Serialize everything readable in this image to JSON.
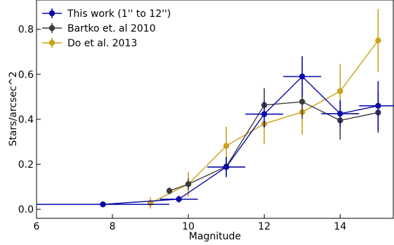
{
  "chart_data": {
    "type": "scatter",
    "xlabel": "Magnitude",
    "ylabel": "Stars/arcsec^2",
    "xlim": [
      6,
      15.4
    ],
    "ylim": [
      -0.04,
      0.93
    ],
    "xticks": [
      6,
      8,
      10,
      12,
      14
    ],
    "yticks": [
      0.0,
      0.2,
      0.4,
      0.6,
      0.8
    ],
    "xtick_labels": [
      "6",
      "8",
      "10",
      "12",
      "14"
    ],
    "ytick_labels": [
      "0.0",
      "0.2",
      "0.4",
      "0.6",
      "0.8"
    ],
    "legend_position": "top-left",
    "grid": false,
    "series": [
      {
        "name": "This work (1'' to 12'')",
        "color": "#0a0aa8",
        "x": [
          7.75,
          9.75,
          11.0,
          12.0,
          13.0,
          14.0,
          15.0
        ],
        "y": [
          0.022,
          0.045,
          0.188,
          0.423,
          0.59,
          0.425,
          0.46
        ],
        "xerr": [
          1.75,
          0.5,
          0.5,
          0.5,
          0.5,
          0.5,
          0.5
        ],
        "yerr": [
          0.008,
          0.015,
          0.045,
          0.06,
          0.09,
          0.06,
          0.11
        ]
      },
      {
        "name": "Bartko et. al 2010",
        "color": "#3c3c3c",
        "x": [
          9.5,
          10.0,
          11.0,
          12.0,
          13.0,
          14.0,
          15.0
        ],
        "y": [
          0.082,
          0.112,
          0.19,
          0.463,
          0.478,
          0.395,
          0.43
        ],
        "yerr": [
          0.015,
          0.025,
          0.04,
          0.075,
          0.075,
          0.085,
          0.09
        ]
      },
      {
        "name": "Do et al. 2013",
        "color": "#c8a21a",
        "x": [
          9.0,
          10.0,
          11.0,
          12.0,
          13.0,
          14.0,
          15.0
        ],
        "y": [
          0.028,
          0.112,
          0.282,
          0.38,
          0.432,
          0.525,
          0.75
        ],
        "yerr": [
          0.025,
          0.055,
          0.085,
          0.09,
          0.1,
          0.12,
          0.14
        ]
      }
    ]
  }
}
